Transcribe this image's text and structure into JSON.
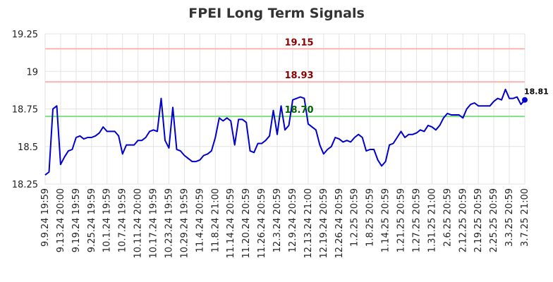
{
  "chart_data": {
    "type": "line",
    "title": "FPEI Long Term Signals",
    "xlabel": "",
    "ylabel": "",
    "ylim": [
      18.25,
      19.25
    ],
    "yticks": [
      18.25,
      18.5,
      18.75,
      19,
      19.25
    ],
    "ytick_labels": [
      "18.25",
      "18.5",
      "18.75",
      "19",
      "19.25"
    ],
    "grid": true,
    "x_tick_labels": [
      "9.9.24 19:59",
      "9.13.24 20:00",
      "9.19.24 19:59",
      "9.25.24 19:59",
      "10.1.24 19:59",
      "10.7.24 19:59",
      "10.11.24 20:00",
      "10.17.24 19:59",
      "10.23.24 19:59",
      "10.29.24 19:59",
      "11.4.24 20:59",
      "11.8.24 21:00",
      "11.14.24 20:59",
      "11.20.24 20:59",
      "11.26.24 20:59",
      "12.3.24 20:59",
      "12.9.24 20:59",
      "12.13.24 21:00",
      "12.19.24 20:59",
      "12.26.24 20:59",
      "1.2.25 20:59",
      "1.8.25 20:59",
      "1.14.25 20:59",
      "1.21.25 20:59",
      "1.27.25 20:59",
      "1.31.25 21:00",
      "2.6.25 20:59",
      "2.12.25 20:59",
      "2.19.25 20:59",
      "2.25.25 20:59",
      "3.3.25 20:59",
      "3.7.25 21:00"
    ],
    "series": [
      {
        "color": "#0000cc",
        "values": [
          18.31,
          18.33,
          18.75,
          18.77,
          18.38,
          18.43,
          18.47,
          18.48,
          18.56,
          18.57,
          18.55,
          18.56,
          18.56,
          18.57,
          18.59,
          18.63,
          18.6,
          18.6,
          18.6,
          18.57,
          18.45,
          18.51,
          18.51,
          18.51,
          18.54,
          18.54,
          18.56,
          18.6,
          18.61,
          18.6,
          18.82,
          18.54,
          18.49,
          18.76,
          18.48,
          18.47,
          18.44,
          18.42,
          18.4,
          18.4,
          18.41,
          18.44,
          18.45,
          18.47,
          18.56,
          18.69,
          18.67,
          18.69,
          18.67,
          18.51,
          18.68,
          18.68,
          18.66,
          18.47,
          18.46,
          18.52,
          18.52,
          18.54,
          18.57,
          18.74,
          18.58,
          18.77,
          18.61,
          18.64,
          18.81,
          18.82,
          18.83,
          18.82,
          18.65,
          18.63,
          18.61,
          18.51,
          18.45,
          18.48,
          18.5,
          18.56,
          18.55,
          18.53,
          18.54,
          18.53,
          18.56,
          18.58,
          18.56,
          18.47,
          18.48,
          18.48,
          18.41,
          18.37,
          18.4,
          18.51,
          18.52,
          18.56,
          18.6,
          18.56,
          18.58,
          18.58,
          18.59,
          18.61,
          18.6,
          18.64,
          18.63,
          18.61,
          18.64,
          18.69,
          18.72,
          18.71,
          18.71,
          18.71,
          18.69,
          18.75,
          18.78,
          18.79,
          18.77,
          18.77,
          18.77,
          18.77,
          18.8,
          18.82,
          18.81,
          18.88,
          18.82,
          18.82,
          18.83,
          18.78,
          18.81
        ]
      }
    ],
    "reference_lines": [
      {
        "value": 19.15,
        "label": "19.15",
        "color": "#ffb3b3",
        "label_color": "#8b0000"
      },
      {
        "value": 18.93,
        "label": "18.93",
        "color": "#ffb3b3",
        "label_color": "#8b0000"
      },
      {
        "value": 18.7,
        "label": "18.70",
        "color": "#80e080",
        "label_color": "#006400"
      }
    ],
    "last_value_label": "18.81"
  }
}
